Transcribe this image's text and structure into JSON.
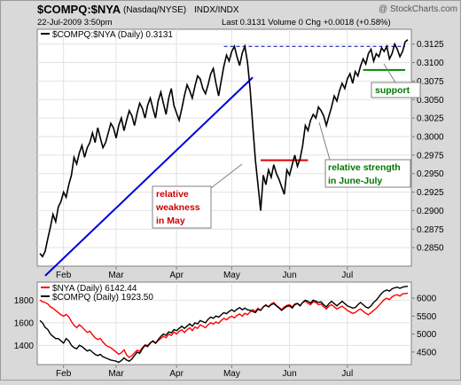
{
  "header": {
    "symbol": "$COMPQ:$NYA",
    "exchange": "(Nasdaq/NYSE)",
    "index_type": "INDX/INDX",
    "datetime": "22-Jul-2009 3:50pm",
    "stats": "Last 0.3131  Volume 0  Chg +0.0018 (+0.58%)",
    "watermark": "@ StockCharts.com"
  },
  "chart_data": [
    {
      "type": "line",
      "legend": "$COMPQ:$NYA (Daily) 0.3131",
      "ylim": [
        0.2825,
        0.3145
      ],
      "y_ticks": [
        "0.2850",
        "0.2875",
        "0.2900",
        "0.2925",
        "0.2950",
        "0.2975",
        "0.3000",
        "0.3025",
        "0.3050",
        "0.3075",
        "0.3100",
        "0.3125"
      ],
      "x_tick_labels": [
        "Feb",
        "Mar",
        "Apr",
        "May",
        "Jun",
        "Jul"
      ],
      "series": [
        {
          "x": [
            0,
            1,
            2,
            3,
            4,
            5,
            6,
            7,
            8,
            9,
            10,
            11,
            12,
            13,
            14,
            15,
            16,
            17,
            18,
            19,
            20,
            21,
            22,
            23,
            24,
            25,
            26,
            27,
            28,
            29,
            30,
            31,
            32,
            33,
            34,
            35,
            36,
            37,
            38,
            39,
            40,
            41,
            42,
            43,
            44,
            45,
            46,
            47,
            48,
            49,
            50,
            51,
            52,
            53,
            54,
            55,
            56,
            57,
            58,
            59,
            60,
            61,
            62,
            63,
            64,
            65,
            66,
            67,
            68,
            69,
            70,
            71,
            72,
            73,
            74,
            75,
            76,
            77,
            78,
            79,
            80,
            81,
            82,
            83,
            84,
            85,
            86,
            87,
            88,
            89,
            90,
            91,
            92,
            93,
            94,
            95,
            96,
            97,
            98,
            99,
            100,
            101,
            102,
            103,
            104,
            105,
            106,
            107,
            108,
            109,
            110,
            111,
            112,
            113,
            114,
            115,
            116,
            117,
            118,
            119,
            120,
            121,
            122,
            123,
            124,
            125,
            126,
            127,
            128,
            129,
            130,
            131,
            132,
            133,
            134,
            135,
            136,
            137,
            138,
            139,
            140
          ],
          "values": [
            0.2842,
            0.2838,
            0.2845,
            0.2862,
            0.2878,
            0.2895,
            0.2885,
            0.2905,
            0.2912,
            0.2925,
            0.2918,
            0.2935,
            0.2948,
            0.2972,
            0.2963,
            0.2978,
            0.2988,
            0.2972,
            0.2985,
            0.2992,
            0.3005,
            0.2992,
            0.3012,
            0.2998,
            0.2985,
            0.2992,
            0.3005,
            0.3018,
            0.3012,
            0.2998,
            0.3015,
            0.3025,
            0.3008,
            0.3022,
            0.3035,
            0.3028,
            0.3015,
            0.3032,
            0.3045,
            0.3038,
            0.3025,
            0.3042,
            0.3052,
            0.3038,
            0.3025,
            0.3048,
            0.306,
            0.3045,
            0.303,
            0.3052,
            0.3065,
            0.3042,
            0.3032,
            0.3022,
            0.3038,
            0.3055,
            0.307,
            0.3062,
            0.3052,
            0.3068,
            0.3082,
            0.3078,
            0.3065,
            0.3058,
            0.307,
            0.3085,
            0.3092,
            0.3072,
            0.3055,
            0.3075,
            0.3095,
            0.311,
            0.3102,
            0.3115,
            0.3122,
            0.3108,
            0.3096,
            0.3113,
            0.3122,
            0.31,
            0.3065,
            0.3015,
            0.2968,
            0.2935,
            0.29,
            0.2948,
            0.2935,
            0.2955,
            0.2945,
            0.2962,
            0.295,
            0.2942,
            0.2932,
            0.2922,
            0.2955,
            0.2948,
            0.2962,
            0.2975,
            0.296,
            0.297,
            0.2988,
            0.3015,
            0.3008,
            0.3022,
            0.303,
            0.3025,
            0.304,
            0.3035,
            0.3028,
            0.3015,
            0.3028,
            0.304,
            0.3055,
            0.3048,
            0.3062,
            0.3072,
            0.3065,
            0.3078,
            0.3085,
            0.3072,
            0.3088,
            0.3082,
            0.3095,
            0.3105,
            0.3098,
            0.3112,
            0.3118,
            0.3102,
            0.3112,
            0.3108,
            0.312,
            0.3115,
            0.3122,
            0.3105,
            0.3112,
            0.3125,
            0.3118,
            0.3108,
            0.3115,
            0.3128,
            0.3131
          ]
        }
      ],
      "annotations": {
        "resistance_level": 0.3122,
        "support_level": 0.309,
        "june_level": 0.2968,
        "trendline": [
          [
            0,
            0.2812
          ],
          [
            81,
            0.308
          ]
        ],
        "labels": [
          {
            "text": [
              "relative",
              "weakness",
              "in May"
            ],
            "color": "#cc0000"
          },
          {
            "text": [
              "relative strength",
              "in June-July"
            ],
            "color": "#007700"
          },
          {
            "text": [
              "support"
            ],
            "color": "#007700"
          }
        ]
      }
    },
    {
      "type": "line",
      "legend": [
        "$NYA (Daily) 6142.44",
        "$COMPQ (Daily) 1923.50"
      ],
      "left_ticks": [
        "1400",
        "1600",
        "1800"
      ],
      "right_ticks": [
        "4500",
        "5000",
        "5500",
        "6000"
      ],
      "left_ylim": [
        1230,
        1960
      ],
      "right_ylim": [
        4150,
        6450
      ],
      "x_tick_labels": [
        "Feb",
        "Mar",
        "Apr",
        "May",
        "Jun",
        "Jul"
      ],
      "series": [
        {
          "name": "$NYA",
          "color": "#ff0000",
          "axis": "right",
          "values": [
            5950,
            5900,
            5880,
            5840,
            5760,
            5720,
            5660,
            5600,
            5540,
            5500,
            5550,
            5480,
            5350,
            5250,
            5180,
            5260,
            5200,
            5120,
            5050,
            5080,
            4980,
            4900,
            4850,
            4880,
            4780,
            4700,
            4650,
            4620,
            4560,
            4500,
            4440,
            4480,
            4560,
            4420,
            4350,
            4400,
            4480,
            4550,
            4520,
            4620,
            4700,
            4680,
            4760,
            4800,
            4740,
            4820,
            4880,
            4940,
            4900,
            5000,
            4960,
            5060,
            5000,
            5080,
            5120,
            5040,
            5120,
            5180,
            5100,
            5200,
            5160,
            5260,
            5220,
            5180,
            5260,
            5320,
            5280,
            5340,
            5300,
            5380,
            5440,
            5400,
            5460,
            5500,
            5450,
            5520,
            5560,
            5500,
            5580,
            5540,
            5620,
            5680,
            5640,
            5720,
            5660,
            5760,
            5820,
            5760,
            5840,
            5880,
            5800,
            5740,
            5680,
            5760,
            5800,
            5820,
            5760,
            5840,
            5860,
            5800,
            5880,
            5920,
            5860,
            5820,
            5900,
            5880,
            5820,
            5840,
            5760,
            5700,
            5780,
            5820,
            5760,
            5700,
            5740,
            5780,
            5720,
            5660,
            5620,
            5580,
            5600,
            5660,
            5700,
            5640,
            5580,
            5540,
            5600,
            5660,
            5720,
            5800,
            5880,
            5960,
            6000,
            5960,
            6040,
            6080,
            6100,
            6060,
            6120,
            6130,
            6142
          ]
        },
        {
          "name": "$COMPQ",
          "color": "#000000",
          "axis": "left",
          "values": [
            1620,
            1600,
            1560,
            1540,
            1500,
            1480,
            1460,
            1460,
            1440,
            1420,
            1460,
            1440,
            1400,
            1380,
            1370,
            1400,
            1390,
            1370,
            1350,
            1360,
            1340,
            1320,
            1310,
            1320,
            1300,
            1290,
            1280,
            1270,
            1265,
            1260,
            1250,
            1265,
            1290,
            1270,
            1260,
            1280,
            1310,
            1340,
            1330,
            1370,
            1400,
            1390,
            1420,
            1440,
            1420,
            1450,
            1480,
            1500,
            1490,
            1520,
            1510,
            1540,
            1530,
            1550,
            1570,
            1550,
            1570,
            1590,
            1570,
            1600,
            1590,
            1620,
            1610,
            1600,
            1630,
            1650,
            1640,
            1660,
            1650,
            1670,
            1690,
            1680,
            1700,
            1715,
            1700,
            1720,
            1735,
            1715,
            1730,
            1715,
            1710,
            1700,
            1690,
            1720,
            1710,
            1740,
            1755,
            1740,
            1760,
            1770,
            1750,
            1730,
            1710,
            1730,
            1745,
            1750,
            1730,
            1760,
            1770,
            1750,
            1780,
            1800,
            1790,
            1775,
            1800,
            1790,
            1780,
            1785,
            1760,
            1740,
            1770,
            1790,
            1770,
            1750,
            1770,
            1790,
            1770,
            1750,
            1740,
            1730,
            1735,
            1760,
            1780,
            1760,
            1740,
            1730,
            1750,
            1780,
            1800,
            1830,
            1860,
            1880,
            1890,
            1880,
            1900,
            1910,
            1915,
            1905,
            1915,
            1920,
            1923
          ]
        }
      ]
    }
  ]
}
